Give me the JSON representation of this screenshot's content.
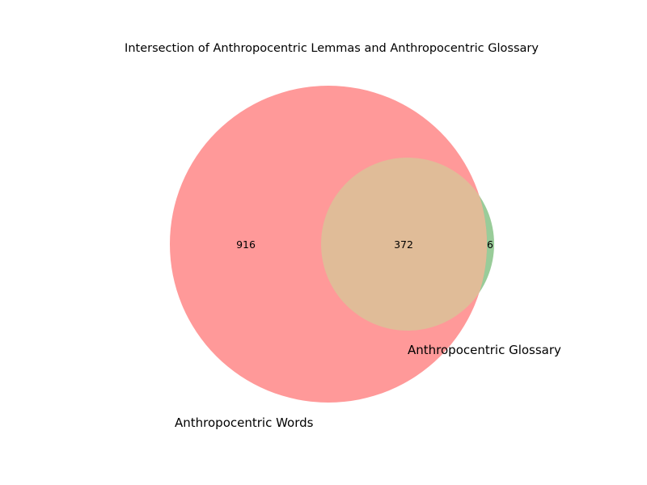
{
  "chart_data": {
    "type": "venn",
    "title": "Intersection of Anthropocentric Lemmas and Anthropocentric Glossary",
    "sets": [
      {
        "name": "Anthropocentric Words",
        "color": "#ff9999"
      },
      {
        "name": "Anthropocentric Glossary",
        "color": "#99cc99"
      }
    ],
    "overlap_color": "#e0bc98",
    "regions": {
      "only_a": 916,
      "both": 372,
      "only_b": 6
    }
  }
}
